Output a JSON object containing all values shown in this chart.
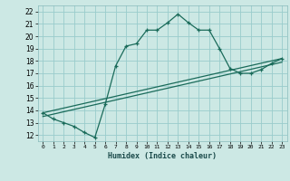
{
  "xlabel": "Humidex (Indice chaleur)",
  "ylabel": "",
  "background_color": "#cce8e4",
  "grid_color": "#99cccc",
  "line_color": "#1a6b5a",
  "xlim": [
    -0.5,
    23.5
  ],
  "ylim": [
    11.5,
    22.5
  ],
  "xticks": [
    0,
    1,
    2,
    3,
    4,
    5,
    6,
    7,
    8,
    9,
    10,
    11,
    12,
    13,
    14,
    15,
    16,
    17,
    18,
    19,
    20,
    21,
    22,
    23
  ],
  "yticks": [
    12,
    13,
    14,
    15,
    16,
    17,
    18,
    19,
    20,
    21,
    22
  ],
  "curve_x": [
    0,
    1,
    2,
    3,
    4,
    5,
    6,
    7,
    8,
    9,
    10,
    11,
    12,
    13,
    14,
    15,
    16,
    17,
    18,
    19,
    20,
    21,
    22,
    23
  ],
  "curve_y": [
    13.8,
    13.3,
    13.0,
    12.7,
    12.2,
    11.8,
    14.5,
    17.6,
    19.2,
    19.4,
    20.5,
    20.5,
    21.1,
    21.8,
    21.1,
    20.5,
    20.5,
    19.0,
    17.4,
    17.0,
    17.0,
    17.3,
    17.8,
    18.2
  ],
  "line_x": [
    0,
    23
  ],
  "line_y": [
    13.8,
    18.2
  ],
  "line2_x": [
    0,
    23
  ],
  "line2_y": [
    13.5,
    17.9
  ]
}
